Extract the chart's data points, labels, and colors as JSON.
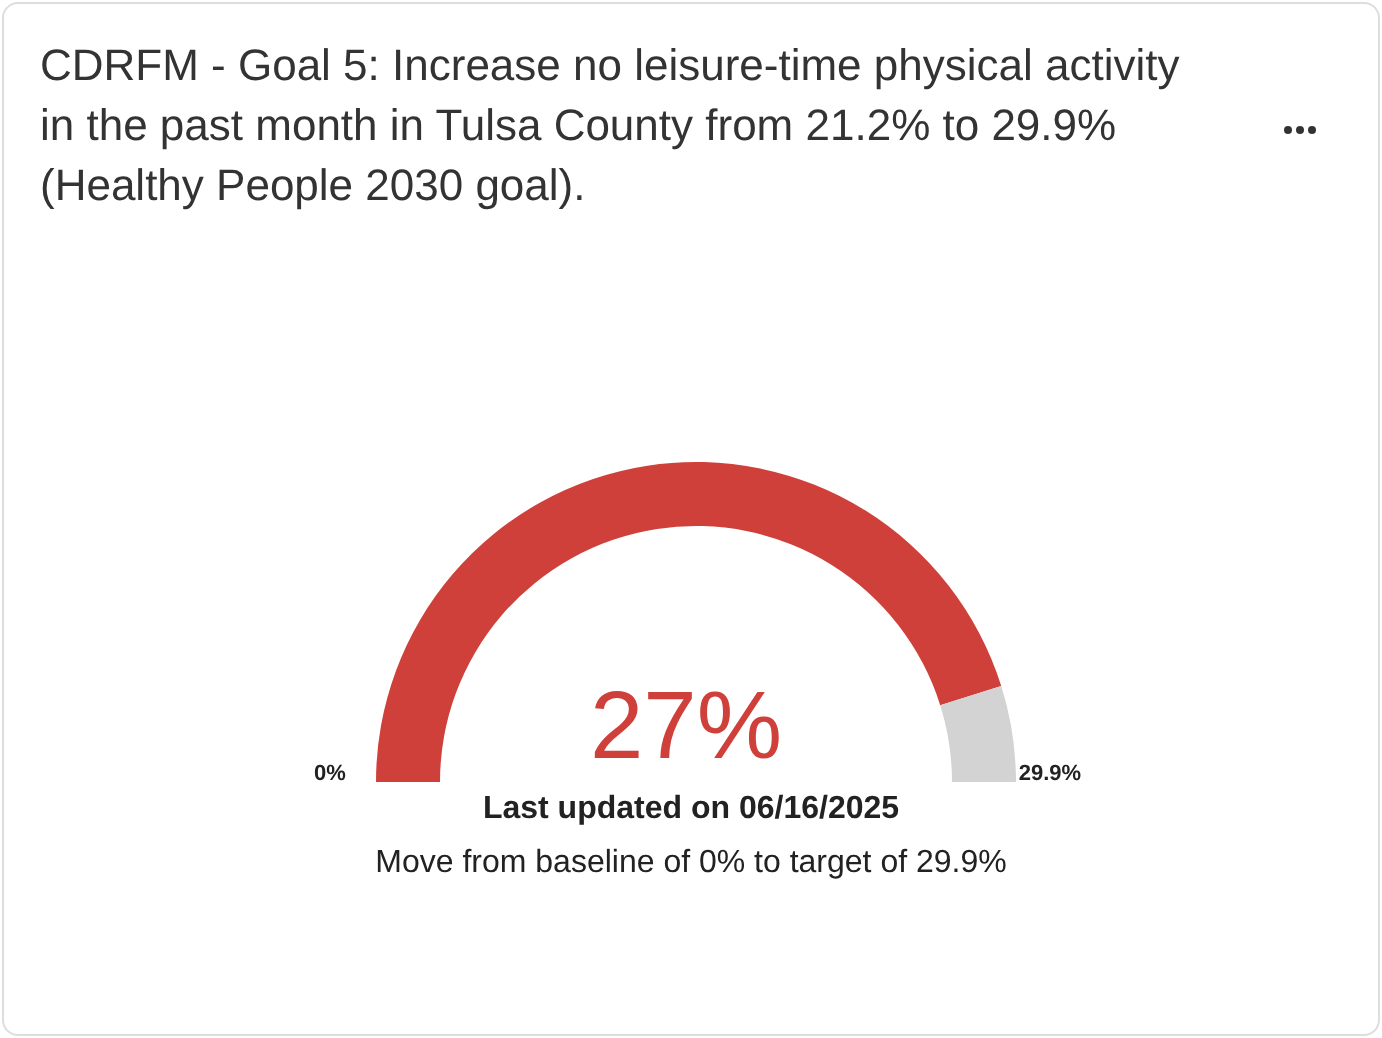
{
  "chart_data": {
    "type": "donut",
    "title": "CDRFM - Goal 5: Increase no leisure-time physical activity in the past month in Tulsa County from 21.2% to 29.9% (Healthy People 2030 goal).",
    "categories": [
      null,
      null
    ],
    "values": [
      27,
      2.9
    ],
    "colors": [
      "#d0403b",
      "#d3d3d3"
    ],
    "value_labels": [
      "27%",
      null
    ],
    "annotations": [
      "0%",
      "29.9%",
      "Last updated on 06/16/2025",
      "Move from baseline of 0% to target of 29.9%"
    ]
  }
}
